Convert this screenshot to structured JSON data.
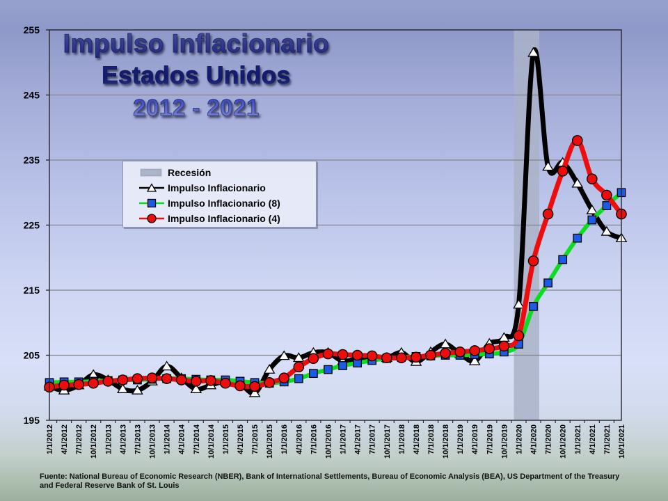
{
  "title": {
    "line1": "Impulso Inflacionario",
    "line2": "Estados Unidos",
    "line3": "2012 - 2021"
  },
  "legend": {
    "items": [
      {
        "label": "Recesión",
        "marker": "recession-swatch"
      },
      {
        "label": "Impulso Inflacionario",
        "marker": "triangle"
      },
      {
        "label": "Impulso Inflacionario (8)",
        "marker": "square"
      },
      {
        "label": "Impulso Inflacionario (4)",
        "marker": "circle"
      }
    ]
  },
  "footer": {
    "text": "Fuente: National Bureau of Economic Research (NBER), Bank of International Settlements, Bureau of Economic Analysis (BEA), US Department of the Treasury and Federal Reserve Bank of St. Louis"
  },
  "chart_data": {
    "type": "line",
    "title": "Impulso Inflacionario Estados Unidos 2012 - 2021",
    "xlabel": "",
    "ylabel": "",
    "ylim": [
      195,
      255
    ],
    "yticks": [
      195,
      205,
      215,
      225,
      235,
      245,
      255
    ],
    "grid": "horizontal",
    "legend_position": "upper-left-inside",
    "x": [
      "1/1/2012",
      "4/1/2012",
      "7/1/2012",
      "10/1/2012",
      "1/1/2013",
      "4/1/2013",
      "7/1/2013",
      "10/1/2013",
      "1/1/2014",
      "4/1/2014",
      "7/1/2014",
      "10/1/2014",
      "1/1/2015",
      "4/1/2015",
      "7/1/2015",
      "10/1/2015",
      "1/1/2016",
      "4/1/2016",
      "7/1/2016",
      "10/1/2016",
      "1/1/2017",
      "4/1/2017",
      "7/1/2017",
      "10/1/2017",
      "1/1/2018",
      "4/1/2018",
      "7/1/2018",
      "10/1/2018",
      "1/1/2019",
      "4/1/2019",
      "7/1/2019",
      "10/1/2019",
      "1/1/2020",
      "4/1/2020",
      "7/1/2020",
      "10/1/2020",
      "1/1/2021",
      "4/1/2021",
      "7/1/2021",
      "10/1/2021"
    ],
    "series": [
      {
        "name": "Impulso Inflacionario",
        "color": "#000000",
        "line_width": 7,
        "marker": "triangle",
        "marker_fill": "#ffffff",
        "values": [
          200.2,
          199.6,
          200.4,
          202.0,
          201.2,
          199.8,
          199.6,
          201.0,
          203.3,
          201.5,
          199.8,
          200.4,
          201.0,
          200.6,
          199.2,
          202.8,
          204.9,
          204.6,
          205.4,
          205.4,
          204.1,
          204.5,
          204.7,
          204.6,
          205.4,
          204.0,
          205.5,
          206.7,
          205.2,
          204.1,
          206.8,
          207.7,
          212.8,
          251.5,
          234.0,
          234.6,
          231.4,
          227.3,
          224.0,
          223.0
        ]
      },
      {
        "name": "Impulso Inflacionario (8)",
        "color": "#0ddd22",
        "line_width": 6,
        "marker": "square",
        "marker_fill": "#1a5ce8",
        "values": [
          200.8,
          200.9,
          200.9,
          201.0,
          201.1,
          201.2,
          201.2,
          201.3,
          201.4,
          201.4,
          201.3,
          201.2,
          201.2,
          201.0,
          200.8,
          200.7,
          200.9,
          201.4,
          202.2,
          202.8,
          203.4,
          203.8,
          204.2,
          204.5,
          204.7,
          204.8,
          204.9,
          205.0,
          205.0,
          205.1,
          205.2,
          205.5,
          206.7,
          212.5,
          216.1,
          219.7,
          223.0,
          225.8,
          228.0,
          230.0
        ]
      },
      {
        "name": "Impulso Inflacionario (4)",
        "color": "#ee0d0d",
        "line_width": 7,
        "marker": "circle",
        "marker_fill": "#ee0d0d",
        "values": [
          200.1,
          200.4,
          200.5,
          200.7,
          201.0,
          201.2,
          201.4,
          201.5,
          201.4,
          201.2,
          201.0,
          201.1,
          200.7,
          200.3,
          200.2,
          200.8,
          201.5,
          203.2,
          204.5,
          205.2,
          205.1,
          205.0,
          204.9,
          204.6,
          204.6,
          204.7,
          205.0,
          205.3,
          205.5,
          205.7,
          206.0,
          206.4,
          208.0,
          219.5,
          226.7,
          233.3,
          238.0,
          232.1,
          229.6,
          226.7
        ]
      }
    ],
    "recession_band": {
      "label": "Recesión",
      "from": "1/1/2020",
      "to": "4/1/2020",
      "color": "#aab3c8"
    }
  }
}
